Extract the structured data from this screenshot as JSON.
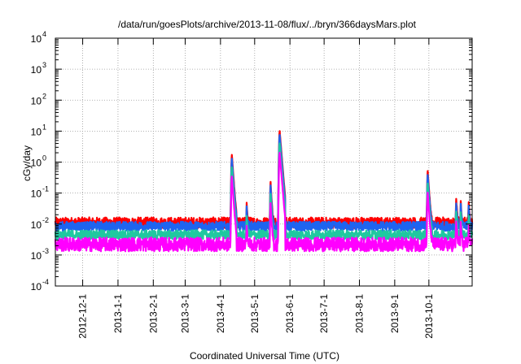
{
  "chart_data": {
    "type": "line",
    "title": "/data/run/goesPlots/archive/2013-11-08/flux/../bryn/366daysMars.plot",
    "xlabel": "Coordinated Universal Time (UTC)",
    "ylabel": "cGy/day",
    "y_scale": "log",
    "ylim": [
      0.0001,
      10000
    ],
    "xlim": [
      "2012-11-07",
      "2013-11-08"
    ],
    "x_ticks": [
      "2012-12-1",
      "2013-1-1",
      "2013-2-1",
      "2013-3-1",
      "2013-4-1",
      "2013-5-1",
      "2013-6-1",
      "2013-7-1",
      "2013-8-1",
      "2013-9-1",
      "2013-10-1"
    ],
    "y_ticks": [
      {
        "value": 0.0001,
        "base": "10",
        "exp": "-4"
      },
      {
        "value": 0.001,
        "base": "10",
        "exp": "-3"
      },
      {
        "value": 0.01,
        "base": "10",
        "exp": "-2"
      },
      {
        "value": 0.1,
        "base": "10",
        "exp": "-1"
      },
      {
        "value": 1,
        "base": "10",
        "exp": "0"
      },
      {
        "value": 10,
        "base": "10",
        "exp": "1"
      },
      {
        "value": 100,
        "base": "10",
        "exp": "2"
      },
      {
        "value": 1000,
        "base": "10",
        "exp": "3"
      },
      {
        "value": 10000,
        "base": "10",
        "exp": "4"
      }
    ],
    "grid": true,
    "legend": "none",
    "series": [
      {
        "color": "#ff0000",
        "baseline": 0.011,
        "jitter": 0.35
      },
      {
        "color": "#1e64f0",
        "baseline": 0.0085,
        "jitter": 0.3
      },
      {
        "color": "#20c8a0",
        "baseline": 0.0045,
        "jitter": 0.3
      },
      {
        "color": "#ff00ff",
        "baseline": 0.0022,
        "jitter": 0.45
      }
    ],
    "events": [
      {
        "date": "2013-04-11",
        "peak": 1.7,
        "width_days": 1.4
      },
      {
        "date": "2013-04-24",
        "peak": 0.035,
        "width_days": 0.8
      },
      {
        "date": "2013-05-15",
        "peak": 0.22,
        "width_days": 1.0
      },
      {
        "date": "2013-05-23",
        "peak": 10,
        "width_days": 1.6
      },
      {
        "date": "2013-09-30",
        "peak": 0.5,
        "width_days": 1.3
      },
      {
        "date": "2013-10-25",
        "peak": 0.05,
        "width_days": 1.0
      },
      {
        "date": "2013-10-29",
        "peak": 0.045,
        "width_days": 0.8
      },
      {
        "date": "2013-11-05",
        "peak": 0.04,
        "width_days": 0.9
      }
    ]
  }
}
